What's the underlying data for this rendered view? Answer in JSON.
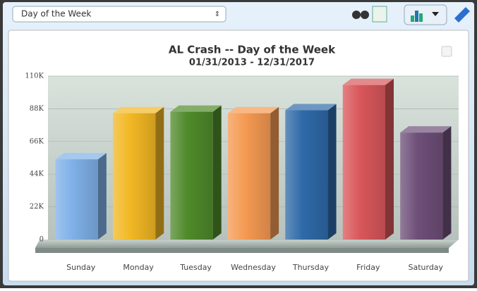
{
  "toolbar": {
    "dropdown": "Day of the Week"
  },
  "chart_data": {
    "type": "bar3d",
    "title": "AL Crash -- Day of the Week",
    "subtitle": "01/31/2013 - 12/31/2017",
    "categories": [
      "Sunday",
      "Monday",
      "Tuesday",
      "Wednesday",
      "Thursday",
      "Friday",
      "Saturday"
    ],
    "values": [
      54000,
      85000,
      86000,
      85000,
      87000,
      104000,
      72000
    ],
    "colors": [
      "#7fb0e8",
      "#f2b824",
      "#4f8a2a",
      "#f59a52",
      "#2f6aa8",
      "#d9575a",
      "#6e4f78"
    ],
    "ylim": [
      0,
      110000
    ],
    "yticks": [
      {
        "value": 0,
        "label": "0"
      },
      {
        "value": 22000,
        "label": "22K"
      },
      {
        "value": 44000,
        "label": "44K"
      },
      {
        "value": 66000,
        "label": "66K"
      },
      {
        "value": 88000,
        "label": "88K"
      },
      {
        "value": 110000,
        "label": "110K"
      }
    ],
    "grid": true
  }
}
